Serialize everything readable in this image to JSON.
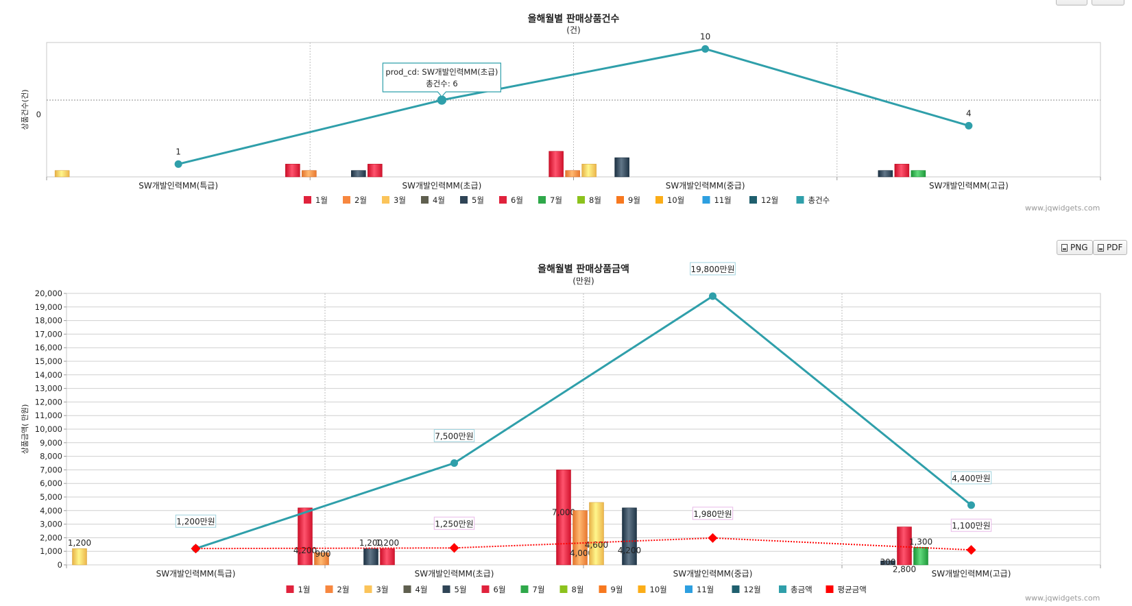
{
  "toolbar": {
    "png_label": "PNG",
    "pdf_label": "PDF"
  },
  "credit": "www.jqwidgets.com",
  "colors": {
    "months": [
      "#e0223c",
      "#f7873f",
      "#fbc45a",
      "#5f5f4f",
      "#2f4456",
      "#e0223c",
      "#2fa84a",
      "#8cc21d",
      "#f7781f",
      "#fbad18",
      "#2d9fe0",
      "#1f5f6e"
    ],
    "total": "#2f9faa",
    "avg": "#ff0000"
  },
  "chart_data": [
    {
      "type": "bar",
      "title": "올해월별 판매상품건수",
      "subtitle": "(건)",
      "ylabel": "상품건수(건)",
      "y_tick_labels": [
        "0"
      ],
      "categories": [
        "SW개발인력MM(특급)",
        "SW개발인력MM(초급)",
        "SW개발인력MM(중급)",
        "SW개발인력MM(고급)"
      ],
      "ylim": [
        0,
        10.5
      ],
      "grid": true,
      "legend_position": "bottom",
      "series": [
        {
          "name": "1월",
          "values": [
            null,
            1,
            2,
            null
          ]
        },
        {
          "name": "2월",
          "values": [
            null,
            0.5,
            0.5,
            null
          ]
        },
        {
          "name": "3월",
          "values": [
            0.5,
            null,
            1,
            null
          ]
        },
        {
          "name": "4월",
          "values": [
            null,
            null,
            null,
            null
          ]
        },
        {
          "name": "5월",
          "values": [
            null,
            0.5,
            1.5,
            0.5
          ]
        },
        {
          "name": "6월",
          "values": [
            null,
            1,
            null,
            1
          ]
        },
        {
          "name": "7월",
          "values": [
            null,
            null,
            null,
            0.5
          ]
        },
        {
          "name": "8월",
          "values": [
            null,
            null,
            null,
            null
          ]
        },
        {
          "name": "9월",
          "values": [
            null,
            null,
            null,
            null
          ]
        },
        {
          "name": "10월",
          "values": [
            null,
            null,
            null,
            null
          ]
        },
        {
          "name": "11월",
          "values": [
            null,
            null,
            null,
            null
          ]
        },
        {
          "name": "12월",
          "values": [
            null,
            null,
            null,
            null
          ]
        }
      ],
      "line_series": [
        {
          "name": "총건수",
          "values": [
            1,
            6,
            10,
            4
          ],
          "labels": [
            "1",
            "",
            "10",
            "4"
          ]
        }
      ],
      "tooltip": {
        "line1": "prod_cd: SW개발인력MM(초급)",
        "line2": "총건수: 6"
      }
    },
    {
      "type": "bar",
      "title": "올해월별 판매상품금액",
      "subtitle": "(만원)",
      "ylabel": "상품금액( 만원)",
      "y_tick_labels": [
        "0",
        "1,000",
        "2,000",
        "3,000",
        "4,000",
        "5,000",
        "6,000",
        "7,000",
        "8,000",
        "9,000",
        "10,000",
        "11,000",
        "12,000",
        "13,000",
        "14,000",
        "15,000",
        "16,000",
        "17,000",
        "18,000",
        "19,000",
        "20,000"
      ],
      "categories": [
        "SW개발인력MM(특급)",
        "SW개발인력MM(초급)",
        "SW개발인력MM(중급)",
        "SW개발인력MM(고급)"
      ],
      "ylim": [
        0,
        20000
      ],
      "grid": true,
      "legend_position": "bottom",
      "series": [
        {
          "name": "1월",
          "values": [
            null,
            4200,
            7000,
            null
          ],
          "labels": [
            "",
            "4,200",
            "7,000",
            ""
          ]
        },
        {
          "name": "2월",
          "values": [
            null,
            900,
            4000,
            null
          ],
          "labels": [
            "",
            "900",
            "4,000",
            ""
          ]
        },
        {
          "name": "3월",
          "values": [
            1200,
            null,
            4600,
            null
          ],
          "labels": [
            "1,200",
            "",
            "4,600",
            ""
          ]
        },
        {
          "name": "4월",
          "values": [
            null,
            null,
            null,
            null
          ],
          "labels": [
            "",
            "",
            "",
            ""
          ]
        },
        {
          "name": "5월",
          "values": [
            null,
            1200,
            4200,
            300
          ],
          "labels": [
            "",
            "1,200",
            "4,200",
            "300"
          ]
        },
        {
          "name": "6월",
          "values": [
            null,
            1200,
            null,
            2800
          ],
          "labels": [
            "",
            "1,200",
            "",
            "2,800"
          ]
        },
        {
          "name": "7월",
          "values": [
            null,
            null,
            null,
            1300
          ],
          "labels": [
            "",
            "",
            "",
            "1,300"
          ]
        },
        {
          "name": "8월",
          "values": [
            null,
            null,
            null,
            null
          ],
          "labels": [
            "",
            "",
            "",
            ""
          ]
        },
        {
          "name": "9월",
          "values": [
            null,
            null,
            null,
            null
          ],
          "labels": [
            "",
            "",
            "",
            ""
          ]
        },
        {
          "name": "10월",
          "values": [
            null,
            null,
            null,
            null
          ],
          "labels": [
            "",
            "",
            "",
            ""
          ]
        },
        {
          "name": "11월",
          "values": [
            null,
            null,
            null,
            null
          ],
          "labels": [
            "",
            "",
            "",
            ""
          ]
        },
        {
          "name": "12월",
          "values": [
            null,
            null,
            null,
            null
          ],
          "labels": [
            "",
            "",
            "",
            ""
          ]
        }
      ],
      "line_series": [
        {
          "name": "총금액",
          "values": [
            1200,
            7500,
            19800,
            4400
          ],
          "labels": [
            "1,200만원",
            "7,500만원",
            "19,800만원",
            "4,400만원"
          ]
        },
        {
          "name": "평균금액",
          "values": [
            1200,
            1250,
            1980,
            1100
          ],
          "labels": [
            "",
            "1,250만원",
            "1,980만원",
            "1,100만원"
          ]
        }
      ]
    }
  ]
}
